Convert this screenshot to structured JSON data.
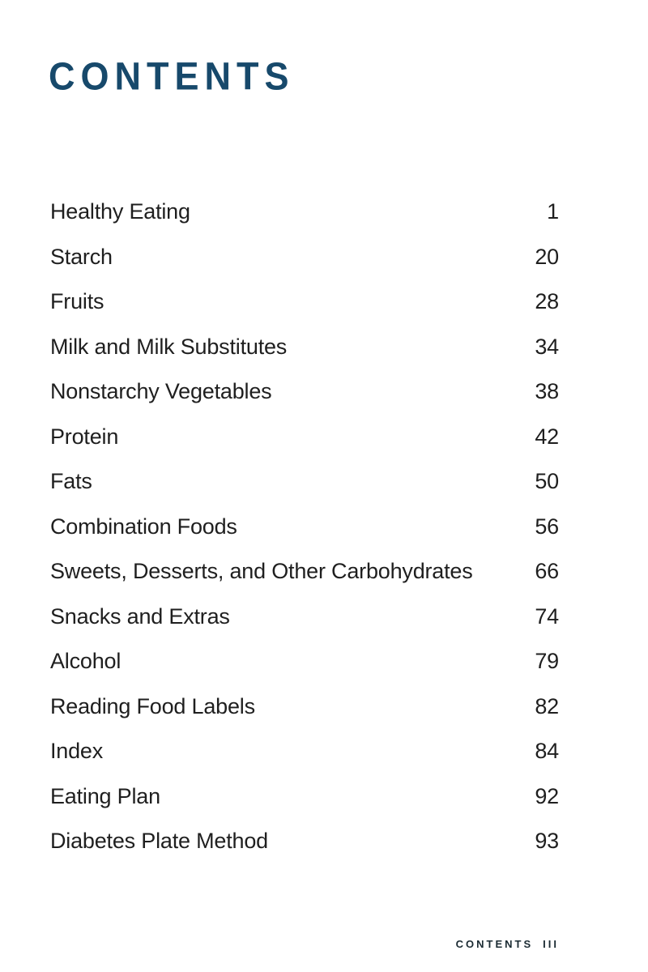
{
  "page": {
    "title": "CONTENTS",
    "footer": {
      "section": "CONTENTS",
      "page": "III"
    }
  },
  "toc": {
    "entries": [
      {
        "label": "Healthy Eating",
        "page": "1"
      },
      {
        "label": "Starch",
        "page": "20"
      },
      {
        "label": "Fruits",
        "page": "28"
      },
      {
        "label": "Milk and Milk Substitutes",
        "page": "34"
      },
      {
        "label": "Nonstarchy Vegetables",
        "page": "38"
      },
      {
        "label": "Protein",
        "page": "42"
      },
      {
        "label": "Fats",
        "page": "50"
      },
      {
        "label": "Combination Foods",
        "page": "56"
      },
      {
        "label": "Sweets, Desserts, and Other Carbohydrates",
        "page": "66"
      },
      {
        "label": "Snacks and Extras",
        "page": "74"
      },
      {
        "label": "Alcohol",
        "page": "79"
      },
      {
        "label": "Reading Food Labels",
        "page": "82"
      },
      {
        "label": "Index",
        "page": "84"
      },
      {
        "label": "Eating Plan",
        "page": "92"
      },
      {
        "label": "Diabetes Plate Method",
        "page": "93"
      }
    ]
  },
  "colors": {
    "accent_navy": "#17496B",
    "body_text": "#1F1F1F",
    "footer_text": "#1B2B33",
    "background": "#FFFFFF"
  }
}
